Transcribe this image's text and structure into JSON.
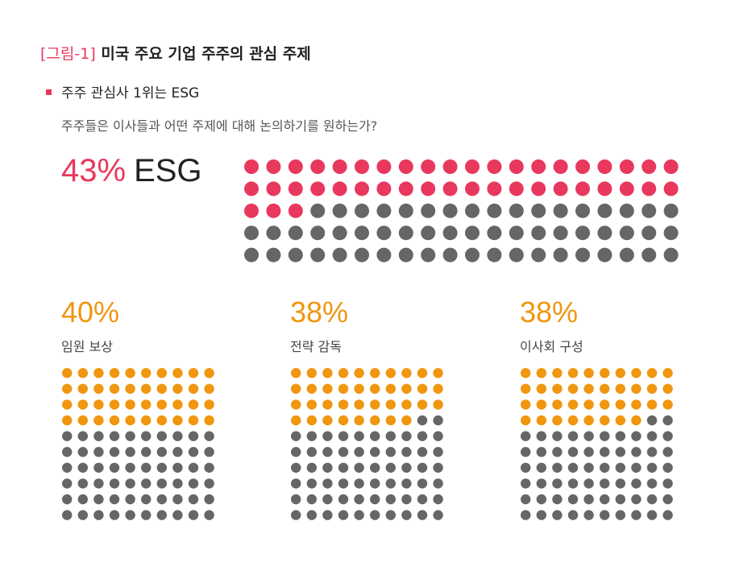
{
  "figure": {
    "tag": "[그림-1]",
    "title": "미국 주요 기업 주주의 관심 주제"
  },
  "headline": "주주 관심사 1위는 ESG",
  "question": "주주들은 이사들과 어떤 주제에 대해 논의하기를 원하는가?",
  "colors": {
    "accent": "#e8385d",
    "orange": "#f0960f",
    "gray": "#666666"
  },
  "chart_data": [
    {
      "type": "waffle",
      "label": "ESG",
      "percent_label": "43%",
      "value": 43,
      "total": 100,
      "rows": 5,
      "cols": 20,
      "color": "#e8385d"
    },
    {
      "type": "waffle",
      "label": "임원 보상",
      "percent_label": "40%",
      "value": 40,
      "total": 100,
      "rows": 10,
      "cols": 10,
      "color": "#f0960f"
    },
    {
      "type": "waffle",
      "label": "전략 감독",
      "percent_label": "38%",
      "value": 38,
      "total": 100,
      "rows": 10,
      "cols": 10,
      "color": "#f0960f"
    },
    {
      "type": "waffle",
      "label": "이사회 구성",
      "percent_label": "38%",
      "value": 38,
      "total": 100,
      "rows": 10,
      "cols": 10,
      "color": "#f0960f"
    }
  ]
}
